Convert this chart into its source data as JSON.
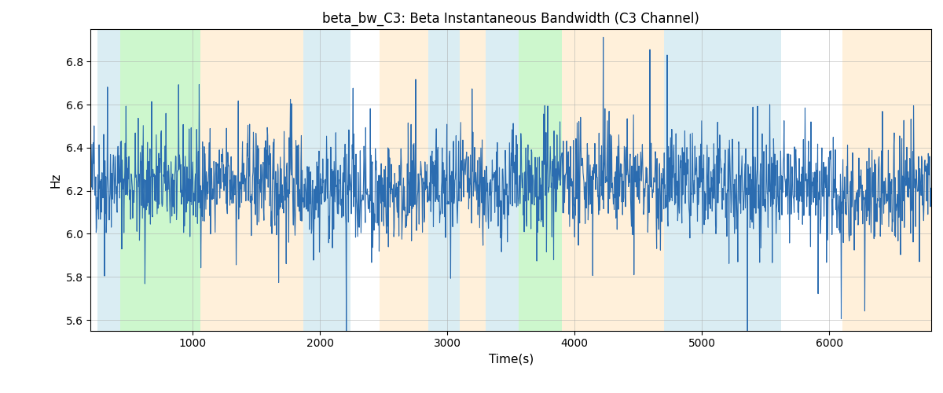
{
  "title": "beta_bw_C3: Beta Instantaneous Bandwidth (C3 Channel)",
  "xlabel": "Time(s)",
  "ylabel": "Hz",
  "xlim": [
    200,
    6800
  ],
  "ylim": [
    5.55,
    6.95
  ],
  "line_color": "#2b6cb0",
  "line_width": 0.8,
  "background_color": "#ffffff",
  "grid_color": "#aaaaaa",
  "grid_alpha": 0.5,
  "mean_value": 6.22,
  "std_value": 0.12,
  "num_points": 2000,
  "x_start": 200,
  "x_end": 6800,
  "colored_bands": [
    {
      "xmin": 250,
      "xmax": 430,
      "color": "#add8e6",
      "alpha": 0.45
    },
    {
      "xmin": 430,
      "xmax": 1060,
      "color": "#90ee90",
      "alpha": 0.45
    },
    {
      "xmin": 1060,
      "xmax": 1870,
      "color": "#ffdead",
      "alpha": 0.45
    },
    {
      "xmin": 1870,
      "xmax": 2240,
      "color": "#add8e6",
      "alpha": 0.45
    },
    {
      "xmin": 2240,
      "xmax": 2470,
      "color": "#ffffff",
      "alpha": 0.0
    },
    {
      "xmin": 2470,
      "xmax": 2850,
      "color": "#ffdead",
      "alpha": 0.45
    },
    {
      "xmin": 2850,
      "xmax": 3100,
      "color": "#add8e6",
      "alpha": 0.45
    },
    {
      "xmin": 3100,
      "xmax": 3300,
      "color": "#ffdead",
      "alpha": 0.45
    },
    {
      "xmin": 3300,
      "xmax": 3560,
      "color": "#add8e6",
      "alpha": 0.45
    },
    {
      "xmin": 3560,
      "xmax": 3900,
      "color": "#90ee90",
      "alpha": 0.45
    },
    {
      "xmin": 3900,
      "xmax": 4100,
      "color": "#ffdead",
      "alpha": 0.45
    },
    {
      "xmin": 4100,
      "xmax": 4700,
      "color": "#ffdead",
      "alpha": 0.45
    },
    {
      "xmin": 4700,
      "xmax": 5620,
      "color": "#add8e6",
      "alpha": 0.45
    },
    {
      "xmin": 5620,
      "xmax": 6100,
      "color": "#ffffff",
      "alpha": 0.0
    },
    {
      "xmin": 6100,
      "xmax": 6800,
      "color": "#ffdead",
      "alpha": 0.45
    }
  ],
  "seed": 42,
  "title_fontsize": 12,
  "label_fontsize": 11
}
